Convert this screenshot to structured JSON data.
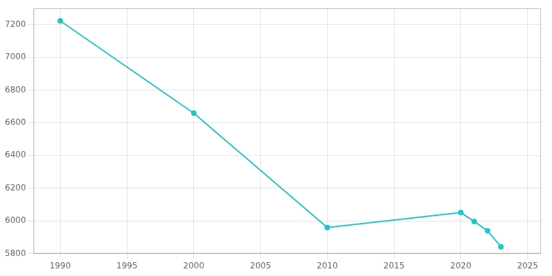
{
  "chart_data": {
    "type": "line",
    "x": [
      1990,
      2000,
      2010,
      2020,
      2021,
      2022,
      2023
    ],
    "values": [
      7223,
      6659,
      5960,
      6051,
      5997,
      5940,
      5842
    ],
    "color": "#22c5c5",
    "marker": "circle",
    "line_style": "solid",
    "xlim": [
      1988,
      2026
    ],
    "xticks": [
      1990,
      1995,
      2000,
      2005,
      2010,
      2015,
      2020,
      2025
    ],
    "ylim": [
      5800,
      7300
    ],
    "yticks": [
      5800,
      6000,
      6200,
      6400,
      6600,
      6800,
      7000,
      7200
    ],
    "grid": true
  }
}
